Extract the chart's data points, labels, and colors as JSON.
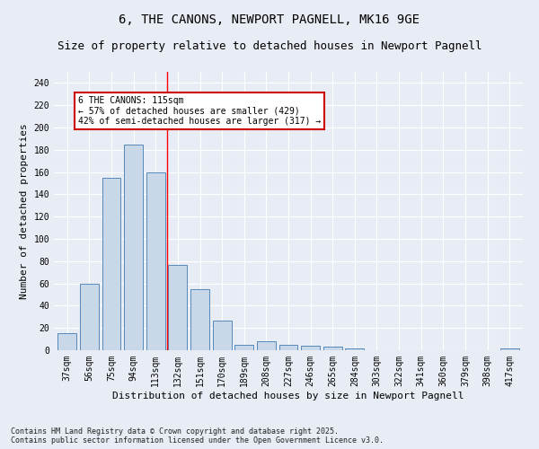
{
  "title": "6, THE CANONS, NEWPORT PAGNELL, MK16 9GE",
  "subtitle": "Size of property relative to detached houses in Newport Pagnell",
  "xlabel": "Distribution of detached houses by size in Newport Pagnell",
  "ylabel": "Number of detached properties",
  "categories": [
    "37sqm",
    "56sqm",
    "75sqm",
    "94sqm",
    "113sqm",
    "132sqm",
    "151sqm",
    "170sqm",
    "189sqm",
    "208sqm",
    "227sqm",
    "246sqm",
    "265sqm",
    "284sqm",
    "303sqm",
    "322sqm",
    "341sqm",
    "360sqm",
    "379sqm",
    "398sqm",
    "417sqm"
  ],
  "values": [
    15,
    60,
    155,
    185,
    160,
    77,
    55,
    27,
    5,
    8,
    5,
    4,
    3,
    2,
    0,
    0,
    0,
    0,
    0,
    0,
    2
  ],
  "bar_color": "#c8d8e8",
  "bar_edge_color": "#5588bb",
  "red_line_x": 4.5,
  "ylim": [
    0,
    250
  ],
  "yticks": [
    0,
    20,
    40,
    60,
    80,
    100,
    120,
    140,
    160,
    180,
    200,
    220,
    240
  ],
  "annotation_text": "6 THE CANONS: 115sqm\n← 57% of detached houses are smaller (429)\n42% of semi-detached houses are larger (317) →",
  "annotation_box_color": "#ffffff",
  "annotation_box_edge": "#cc0000",
  "footer_line1": "Contains HM Land Registry data © Crown copyright and database right 2025.",
  "footer_line2": "Contains public sector information licensed under the Open Government Licence v3.0.",
  "background_color": "#e8ecf4",
  "title_fontsize": 10,
  "subtitle_fontsize": 9,
  "tick_fontsize": 7,
  "ylabel_fontsize": 8,
  "xlabel_fontsize": 8
}
